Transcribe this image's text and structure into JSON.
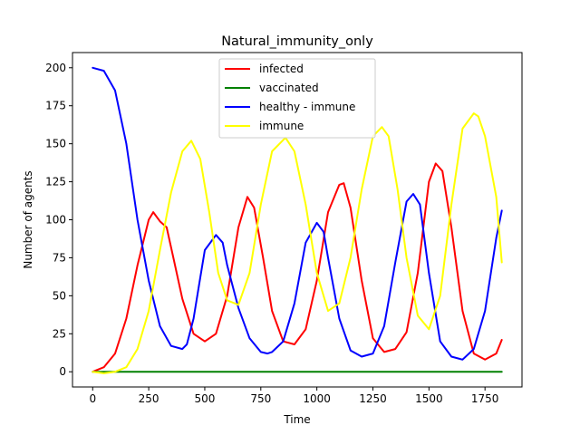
{
  "chart_data": {
    "type": "line",
    "title": "Natural_immunity_only",
    "xlabel": "Time",
    "ylabel": "Number of agents",
    "xlim": [
      -90,
      1915
    ],
    "ylim": [
      -10,
      210
    ],
    "xticks": [
      0,
      250,
      500,
      750,
      1000,
      1250,
      1500,
      1750
    ],
    "yticks": [
      0,
      25,
      50,
      75,
      100,
      125,
      150,
      175,
      200
    ],
    "grid": false,
    "legend_position": "top-center",
    "series": [
      {
        "name": "infected",
        "color": "#ff0000",
        "x": [
          0,
          50,
          100,
          150,
          200,
          250,
          270,
          300,
          330,
          360,
          400,
          450,
          500,
          550,
          600,
          650,
          690,
          720,
          760,
          800,
          850,
          900,
          950,
          1000,
          1050,
          1100,
          1120,
          1150,
          1200,
          1250,
          1300,
          1350,
          1400,
          1450,
          1500,
          1530,
          1560,
          1600,
          1650,
          1700,
          1750,
          1800,
          1825
        ],
        "y": [
          0,
          3,
          12,
          35,
          70,
          100,
          105,
          99,
          95,
          75,
          48,
          25,
          20,
          25,
          50,
          95,
          115,
          108,
          75,
          40,
          20,
          18,
          28,
          60,
          105,
          123,
          124,
          108,
          60,
          22,
          13,
          15,
          26,
          65,
          125,
          137,
          132,
          95,
          40,
          12,
          8,
          12,
          21
        ]
      },
      {
        "name": "vaccinated",
        "color": "#008000",
        "x": [
          0,
          1825
        ],
        "y": [
          0,
          0
        ]
      },
      {
        "name": "healthy - immune",
        "color": "#0000ff",
        "x": [
          0,
          50,
          100,
          150,
          200,
          250,
          300,
          350,
          400,
          420,
          450,
          480,
          500,
          550,
          580,
          600,
          650,
          700,
          750,
          780,
          800,
          850,
          900,
          950,
          1000,
          1030,
          1050,
          1100,
          1150,
          1200,
          1250,
          1300,
          1350,
          1400,
          1430,
          1460,
          1500,
          1550,
          1600,
          1650,
          1700,
          1750,
          1800,
          1825
        ],
        "y": [
          200,
          198,
          185,
          150,
          100,
          60,
          30,
          17,
          15,
          18,
          35,
          62,
          80,
          90,
          85,
          70,
          42,
          22,
          13,
          12,
          13,
          20,
          45,
          85,
          98,
          92,
          75,
          35,
          14,
          10,
          12,
          30,
          72,
          112,
          117,
          110,
          65,
          20,
          10,
          8,
          15,
          40,
          88,
          106
        ]
      },
      {
        "name": "immune",
        "color": "#ffff00",
        "x": [
          0,
          50,
          100,
          150,
          200,
          250,
          300,
          350,
          400,
          440,
          480,
          520,
          560,
          600,
          650,
          700,
          750,
          800,
          860,
          900,
          950,
          1000,
          1050,
          1100,
          1150,
          1200,
          1250,
          1290,
          1320,
          1360,
          1400,
          1450,
          1500,
          1550,
          1600,
          1650,
          1700,
          1720,
          1750,
          1800,
          1825
        ],
        "y": [
          0,
          -1,
          0,
          3,
          15,
          40,
          80,
          118,
          145,
          152,
          140,
          105,
          65,
          47,
          44,
          65,
          110,
          145,
          154,
          145,
          110,
          65,
          40,
          45,
          75,
          120,
          155,
          161,
          155,
          120,
          75,
          37,
          28,
          50,
          110,
          160,
          170,
          168,
          155,
          115,
          72
        ]
      }
    ]
  }
}
